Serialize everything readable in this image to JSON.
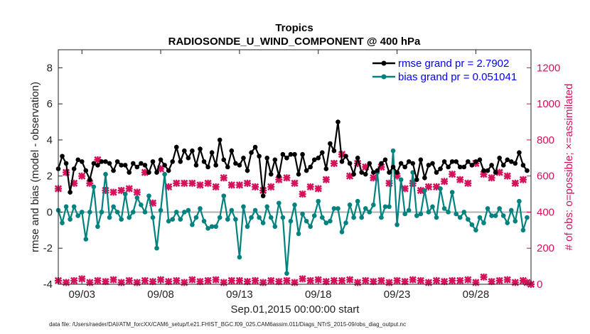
{
  "chart_data": {
    "type": "line",
    "title": "Tropics",
    "subtitle": "RADIOSONDE_U_WIND_COMPONENT @ 400 hPa",
    "xlabel": "Sep.01,2015 00:00:00 start",
    "ylabel": "rmse and bias (model - observation)",
    "y2label": "# of obs: o=possible; ×=assimilated",
    "footnote": "data file: /Users/raeder/DAI/ATM_forcXX/CAM6_setup/f.e21.FHIST_BGC.f09_025.CAM6assim.011/Diags_NTrS_2015-09/obs_diag_output.nc",
    "xlim": [
      1.5,
      31.5
    ],
    "ylim": [
      -4,
      9
    ],
    "y2lim": [
      0,
      1300
    ],
    "x_ticks": [
      3,
      8,
      13,
      18,
      23,
      28
    ],
    "x_tick_labels": [
      "09/03",
      "09/08",
      "09/13",
      "09/18",
      "09/23",
      "09/28"
    ],
    "y_ticks": [
      -4,
      -2,
      0,
      2,
      4,
      6,
      8
    ],
    "y_tick_labels": [
      "-4",
      "-2",
      "0",
      "2",
      "4",
      "6",
      "8"
    ],
    "y2_ticks": [
      0,
      200,
      400,
      600,
      800,
      1000,
      1200
    ],
    "y2_tick_labels": [
      "0",
      "200",
      "400",
      "600",
      "800",
      "1000",
      "1200"
    ],
    "legend_position": "top-right",
    "series": [
      {
        "name": "rmse grand pr = 2.7902",
        "axis": "left",
        "color": "#000000",
        "x": [
          1.5,
          1.75,
          2,
          2.25,
          2.5,
          2.75,
          3,
          3.25,
          3.5,
          3.75,
          4,
          4.25,
          4.5,
          4.75,
          5,
          5.25,
          5.5,
          5.75,
          6,
          6.25,
          6.5,
          6.75,
          7,
          7.25,
          7.5,
          7.75,
          8,
          8.25,
          8.5,
          8.75,
          9,
          9.25,
          9.5,
          9.75,
          10,
          10.25,
          10.5,
          10.75,
          11,
          11.25,
          11.5,
          11.75,
          12,
          12.25,
          12.5,
          12.75,
          13,
          13.25,
          13.5,
          13.75,
          14,
          14.25,
          14.5,
          14.75,
          15,
          15.25,
          15.5,
          15.75,
          16,
          16.25,
          16.5,
          16.75,
          17,
          17.25,
          17.5,
          17.75,
          18,
          18.25,
          18.5,
          18.75,
          19,
          19.25,
          19.5,
          19.75,
          20,
          20.25,
          20.5,
          20.75,
          21,
          21.25,
          21.5,
          21.75,
          22,
          22.25,
          22.5,
          22.75,
          23,
          23.25,
          23.5,
          23.75,
          24,
          24.25,
          24.5,
          24.75,
          25,
          25.25,
          25.5,
          25.75,
          26,
          26.25,
          26.5,
          26.75,
          27,
          27.25,
          27.5,
          27.75,
          28,
          28.25,
          28.5,
          28.75,
          29,
          29.25,
          29.5,
          29.75,
          30,
          30.25,
          30.5,
          30.75,
          31,
          31.25
        ],
        "values": [
          2.4,
          3.1,
          2.7,
          1.1,
          2.4,
          2.9,
          2.8,
          2.3,
          1.8,
          2.7,
          2.6,
          2.8,
          2.8,
          2.7,
          2.3,
          2.8,
          2.6,
          2.6,
          2.2,
          2.7,
          2.5,
          2.7,
          2.6,
          2.2,
          2.8,
          2.2,
          2.9,
          2.6,
          2.3,
          2.8,
          3.6,
          2.8,
          3.4,
          3.0,
          3.4,
          2.6,
          3.5,
          2.8,
          2.5,
          3.3,
          2.6,
          4.0,
          2.9,
          2.5,
          3.4,
          2.7,
          2.6,
          3.0,
          2.3,
          3.3,
          3.6,
          3.1,
          0.9,
          3.0,
          2.1,
          2.9,
          2.0,
          3.2,
          3.0,
          3.2,
          3.2,
          2.1,
          3.2,
          2.3,
          2.5,
          2.9,
          3.0,
          3.3,
          2.4,
          3.8,
          3.4,
          5.0,
          2.8,
          3.1,
          2.7,
          2.1,
          3.0,
          2.2,
          2.1,
          2.7,
          2.2,
          2.3,
          2.7,
          2.9,
          2.2,
          2.5,
          2.2,
          2.7,
          2.5,
          2.8,
          2.7,
          1.8,
          2.9,
          1.9,
          2.6,
          2.7,
          2.2,
          2.4,
          2.8,
          2.5,
          2.8,
          2.8,
          2.5,
          2.5,
          2.8,
          2.6,
          2.8,
          2.9,
          2.3,
          2.3,
          2.6,
          2.2,
          3.0,
          2.6,
          2.9,
          2.8,
          2.7,
          3.3,
          2.6,
          2.3
        ]
      },
      {
        "name": "bias grand pr = 0.051041",
        "axis": "left",
        "color": "#00827f",
        "x": [
          1.5,
          1.75,
          2,
          2.25,
          2.5,
          2.75,
          3,
          3.25,
          3.5,
          3.75,
          4,
          4.25,
          4.5,
          4.75,
          5,
          5.25,
          5.5,
          5.75,
          6,
          6.25,
          6.5,
          6.75,
          7,
          7.25,
          7.5,
          7.75,
          8,
          8.25,
          8.5,
          8.75,
          9,
          9.25,
          9.5,
          9.75,
          10,
          10.25,
          10.5,
          10.75,
          11,
          11.25,
          11.5,
          11.75,
          12,
          12.25,
          12.5,
          12.75,
          13,
          13.25,
          13.5,
          13.75,
          14,
          14.25,
          14.5,
          14.75,
          15,
          15.25,
          15.5,
          15.75,
          16,
          16.25,
          16.5,
          16.75,
          17,
          17.25,
          17.5,
          17.75,
          18,
          18.25,
          18.5,
          18.75,
          19,
          19.25,
          19.5,
          19.75,
          20,
          20.25,
          20.5,
          20.75,
          21,
          21.25,
          21.5,
          21.75,
          22,
          22.25,
          22.5,
          22.75,
          23,
          23.25,
          23.5,
          23.75,
          24,
          24.25,
          24.5,
          24.75,
          25,
          25.25,
          25.5,
          25.75,
          26,
          26.25,
          26.5,
          26.75,
          27,
          27.25,
          27.5,
          27.75,
          28,
          28.25,
          28.5,
          28.75,
          29,
          29.25,
          29.5,
          29.75,
          30,
          30.25,
          30.5,
          30.75,
          31,
          31.25
        ],
        "values": [
          0.1,
          -0.6,
          0.3,
          -0.4,
          0.3,
          -0.2,
          0.0,
          -1.5,
          0.0,
          1.4,
          -0.8,
          0.0,
          2.1,
          -0.3,
          0.3,
          0.0,
          -0.4,
          1.0,
          -0.3,
          0.0,
          0.8,
          0.4,
          0.0,
          0.9,
          -0.3,
          -2.0,
          0.1,
          2.1,
          -0.5,
          -0.4,
          0.0,
          -0.4,
          0.0,
          0.1,
          -0.7,
          -0.3,
          0.2,
          -0.5,
          -0.9,
          -0.8,
          -0.8,
          -0.3,
          0.9,
          -0.4,
          0.1,
          -0.4,
          -2.5,
          0.3,
          -0.8,
          -0.3,
          0.1,
          -0.3,
          -0.6,
          0.3,
          -0.3,
          -0.8,
          0.5,
          -0.3,
          -3.4,
          -0.5,
          0.4,
          -1.2,
          -0.1,
          -0.5,
          -0.8,
          -0.2,
          0.6,
          -0.3,
          -0.6,
          -0.5,
          0.2,
          0.2,
          -1.1,
          -0.6,
          0.4,
          -0.3,
          0.6,
          -0.3,
          0.2,
          0.0,
          0.4,
          2.2,
          -0.3,
          0.3,
          0.3,
          3.4,
          -0.7,
          1.8,
          -0.1,
          0.1,
          2.2,
          -0.2,
          -0.1,
          1.2,
          0.0,
          0.3,
          -0.3,
          1.3,
          0.2,
          0.0,
          1.1,
          -0.1,
          -0.3,
          0.0,
          -0.4,
          -0.7,
          -1.0,
          -0.3,
          -0.6,
          0.2,
          -0.2,
          -0.2,
          0.2,
          -0.2,
          -0.6,
          0.1,
          -0.5,
          0.6,
          -1.0,
          -0.3
        ]
      },
      {
        "name": "possible",
        "axis": "right",
        "color": "#d6105a",
        "x": [
          1.5,
          2,
          2.5,
          3,
          3.5,
          4,
          4.5,
          5,
          5.5,
          6,
          6.5,
          7,
          7.5,
          8,
          8.5,
          9,
          9.5,
          10,
          10.5,
          11,
          11.5,
          12,
          12.5,
          13,
          13.5,
          14,
          14.5,
          15,
          15.5,
          16,
          16.5,
          17,
          17.5,
          18,
          18.5,
          19,
          19.5,
          20,
          20.5,
          21,
          21.5,
          22,
          22.5,
          23,
          23.5,
          24,
          24.5,
          25,
          25.5,
          26,
          26.5,
          27,
          27.5,
          28,
          28.5,
          29,
          29.5,
          30,
          30.5,
          31
        ],
        "values": [
          530,
          620,
          560,
          600,
          560,
          690,
          520,
          510,
          520,
          530,
          510,
          620,
          450,
          640,
          540,
          560,
          560,
          560,
          550,
          560,
          540,
          590,
          550,
          550,
          560,
          540,
          520,
          540,
          580,
          590,
          560,
          500,
          540,
          530,
          580,
          670,
          720,
          600,
          670,
          650,
          590,
          650,
          560,
          600,
          530,
          560,
          520,
          540,
          540,
          570,
          610,
          580,
          560,
          670,
          610,
          590,
          620,
          600,
          560,
          580
        ]
      },
      {
        "name": "assimilated",
        "axis": "right",
        "color": "#d6105a",
        "x": [
          1.5,
          2,
          2.5,
          3,
          3.5,
          4,
          4.5,
          5,
          5.5,
          6,
          6.5,
          7,
          7.5,
          8,
          8.5,
          9,
          9.5,
          10,
          10.5,
          11,
          11.5,
          12,
          12.5,
          13,
          13.5,
          14,
          14.5,
          15,
          15.5,
          16,
          16.5,
          17,
          17.5,
          18,
          18.5,
          19,
          19.5,
          20,
          20.5,
          21,
          21.5,
          22,
          22.5,
          23,
          23.5,
          24,
          24.5,
          25,
          25.5,
          26,
          26.5,
          27,
          27.5,
          28,
          28.5,
          29,
          29.5,
          30,
          30.5,
          31,
          31.25,
          31.5
        ],
        "values": [
          20,
          10,
          20,
          30,
          10,
          20,
          15,
          25,
          10,
          20,
          10,
          20,
          15,
          25,
          15,
          20,
          10,
          25,
          15,
          20,
          25,
          10,
          20,
          20,
          15,
          20,
          10,
          20,
          15,
          20,
          10,
          30,
          20,
          25,
          15,
          20,
          20,
          25,
          10,
          20,
          15,
          20,
          10,
          20,
          15,
          25,
          20,
          10,
          20,
          15,
          20,
          20,
          25,
          10,
          40,
          15,
          20,
          25,
          10,
          20,
          10,
          0
        ]
      }
    ]
  }
}
